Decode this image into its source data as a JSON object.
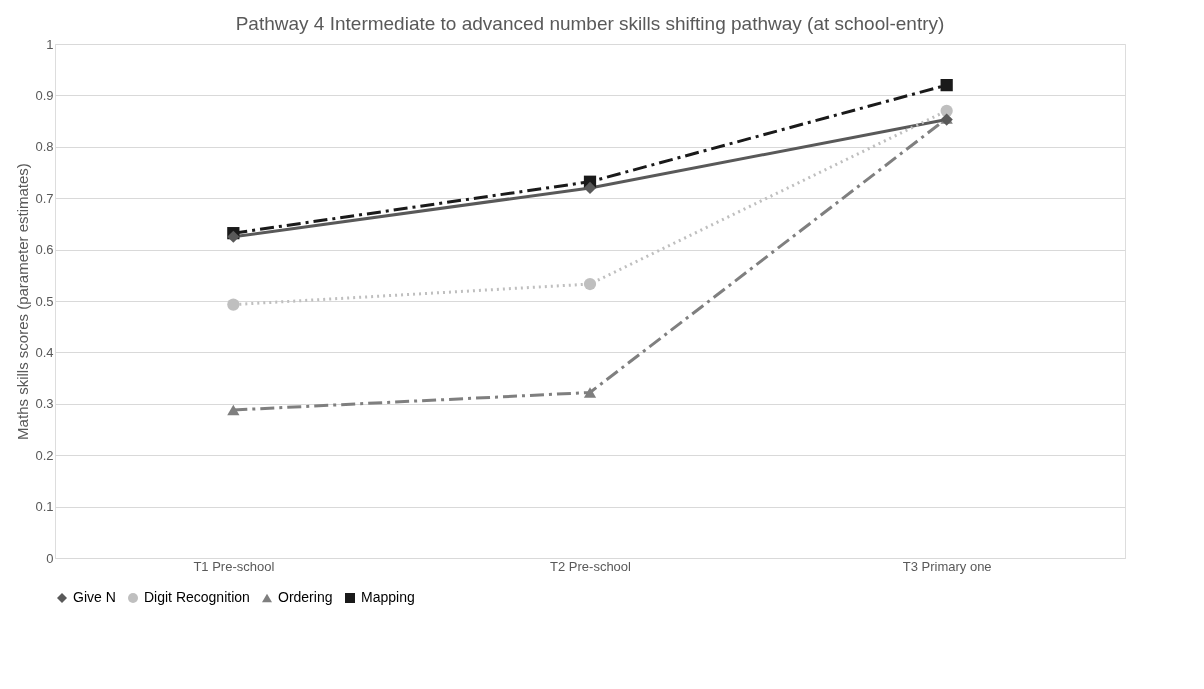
{
  "chart_data": {
    "type": "line",
    "title": "Pathway 4 Intermediate to advanced number skills shifting pathway (at school-entry)",
    "ylabel": "Maths skills scores (parameter estimates)",
    "categories": [
      "T1 Pre-school",
      "T2 Pre-school",
      "T3 Primary one"
    ],
    "series": [
      {
        "name": "Give N",
        "color": "#595959",
        "marker": "diamond",
        "line_style": "solid",
        "values": [
          0.625,
          0.72,
          0.853
        ]
      },
      {
        "name": "Digit Recognition",
        "color": "#bfbfbf",
        "marker": "circle",
        "line_style": "dotted",
        "values": [
          0.493,
          0.533,
          0.87
        ]
      },
      {
        "name": "Ordering",
        "color": "#7f7f7f",
        "marker": "triangle",
        "line_style": "dashed",
        "values": [
          0.288,
          0.322,
          0.855
        ]
      },
      {
        "name": "Mapping",
        "color": "#1a1a1a",
        "marker": "square",
        "line_style": "dashed",
        "values": [
          0.632,
          0.732,
          0.92
        ]
      }
    ],
    "ylim": [
      0,
      1
    ],
    "yticks": [
      0,
      0.1,
      0.2,
      0.3,
      0.4,
      0.5,
      0.6,
      0.7,
      0.8,
      0.9,
      1
    ],
    "grid": "y",
    "legend": "bottom"
  }
}
